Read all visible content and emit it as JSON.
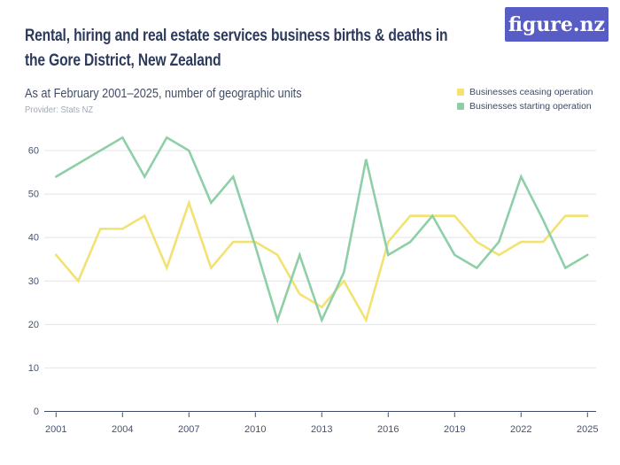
{
  "header": {
    "title_line1": "Rental, hiring and real estate services business births & deaths in",
    "title_line2": "the Gore District, New Zealand",
    "subtitle": "As at February 2001–2025, number of geographic units",
    "provider": "Provider: Stats NZ"
  },
  "logo": {
    "text": "figure.nz"
  },
  "colors": {
    "brand_purple": "#585dc5",
    "title_text": "#2d3a5c",
    "subtitle_text": "#414d68",
    "provider_text": "#a3aab6",
    "axis": "#3f4c68",
    "tick_label": "#46536e",
    "gridline": "#e4e4e8",
    "ceasing_line": "#f2e272",
    "starting_line": "#8ecfa7"
  },
  "chart_data": {
    "type": "line",
    "title": "Rental, hiring and real estate services business births & deaths in the Gore District, New Zealand",
    "subtitle": "As at February 2001–2025, number of geographic units",
    "provider": "Provider: Stats NZ",
    "xlabel": "",
    "ylabel": "",
    "grid": "horizontal",
    "legend_position": "top-right",
    "ylim": [
      0,
      65
    ],
    "y_ticks": [
      0,
      10,
      20,
      30,
      40,
      50,
      60
    ],
    "x": [
      2001,
      2002,
      2003,
      2004,
      2005,
      2006,
      2007,
      2008,
      2009,
      2010,
      2011,
      2012,
      2013,
      2014,
      2015,
      2016,
      2017,
      2018,
      2019,
      2020,
      2021,
      2022,
      2023,
      2024,
      2025
    ],
    "x_tick_labels": [
      "2001",
      "2004",
      "2007",
      "2010",
      "2013",
      "2016",
      "2019",
      "2022",
      "2025"
    ],
    "series": [
      {
        "name": "Businesses ceasing operation",
        "color": "#f2e272",
        "values": [
          36,
          30,
          42,
          42,
          45,
          33,
          48,
          33,
          39,
          39,
          36,
          27,
          24,
          30,
          21,
          39,
          45,
          45,
          45,
          39,
          36,
          39,
          39,
          45,
          45
        ]
      },
      {
        "name": "Businesses starting operation",
        "color": "#8ecfa7",
        "values": [
          54,
          57,
          60,
          63,
          54,
          63,
          60,
          48,
          54,
          38,
          21,
          36,
          21,
          32,
          58,
          36,
          39,
          45,
          36,
          33,
          39,
          54,
          44,
          33,
          36
        ]
      }
    ]
  }
}
